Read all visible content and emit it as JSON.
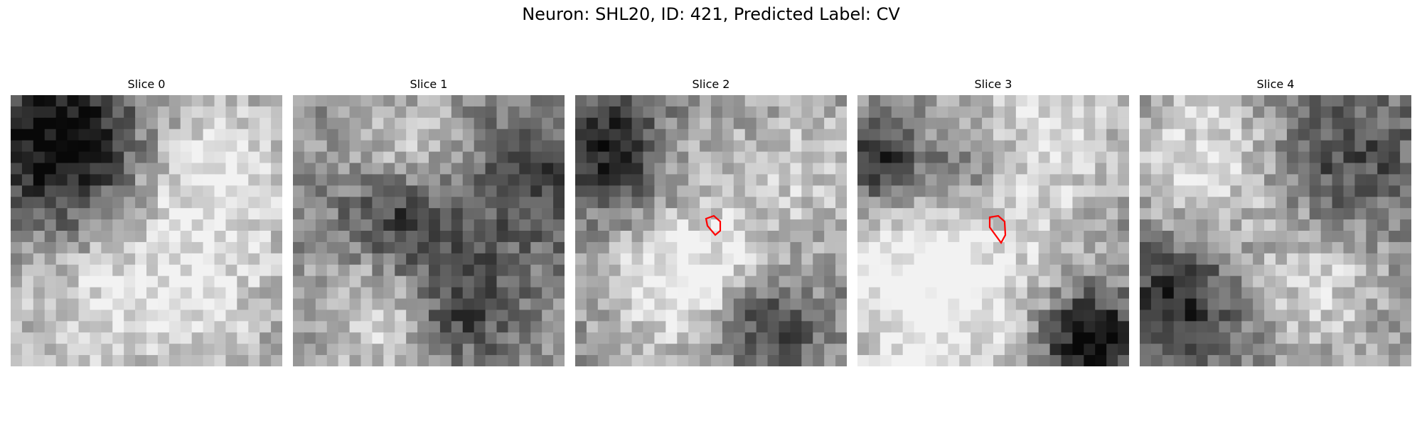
{
  "figure": {
    "title": "Neuron: SHL20, ID: 421, Predicted Label: CV"
  },
  "panels": [
    {
      "title": "Slice 0",
      "seed": 11,
      "contour": false,
      "blobs": [
        [
          0.2,
          0.2,
          -0.6,
          0.22
        ],
        [
          0.75,
          0.3,
          0.4,
          0.25
        ],
        [
          0.3,
          0.75,
          0.3,
          0.25
        ],
        [
          0.75,
          0.8,
          0.2,
          0.2
        ]
      ]
    },
    {
      "title": "Slice 1",
      "seed": 23,
      "contour": false,
      "blobs": [
        [
          0.45,
          0.25,
          0.35,
          0.18
        ],
        [
          0.4,
          0.45,
          -0.5,
          0.15
        ],
        [
          0.35,
          0.8,
          0.35,
          0.18
        ],
        [
          0.85,
          0.3,
          -0.3,
          0.2
        ],
        [
          0.6,
          0.78,
          -0.4,
          0.14
        ]
      ]
    },
    {
      "title": "Slice 2",
      "seed": 37,
      "contour": true,
      "blobs": [
        [
          0.2,
          0.2,
          -0.5,
          0.18
        ],
        [
          0.38,
          0.18,
          0.3,
          0.12
        ],
        [
          0.4,
          0.65,
          0.45,
          0.22
        ],
        [
          0.85,
          0.25,
          0.25,
          0.2
        ],
        [
          0.7,
          0.85,
          -0.4,
          0.12
        ]
      ]
    },
    {
      "title": "Slice 3",
      "seed": 41,
      "contour": true,
      "blobs": [
        [
          0.28,
          0.72,
          0.5,
          0.28
        ],
        [
          0.08,
          0.25,
          -0.5,
          0.1
        ],
        [
          0.65,
          0.15,
          0.35,
          0.25
        ],
        [
          0.85,
          0.9,
          -0.6,
          0.12
        ],
        [
          0.4,
          0.28,
          -0.3,
          0.15
        ]
      ]
    },
    {
      "title": "Slice 4",
      "seed": 53,
      "contour": false,
      "blobs": [
        [
          0.25,
          0.25,
          0.35,
          0.22
        ],
        [
          0.75,
          0.25,
          -0.3,
          0.2
        ],
        [
          0.15,
          0.75,
          -0.4,
          0.18
        ],
        [
          0.65,
          0.7,
          0.3,
          0.2
        ]
      ]
    }
  ]
}
